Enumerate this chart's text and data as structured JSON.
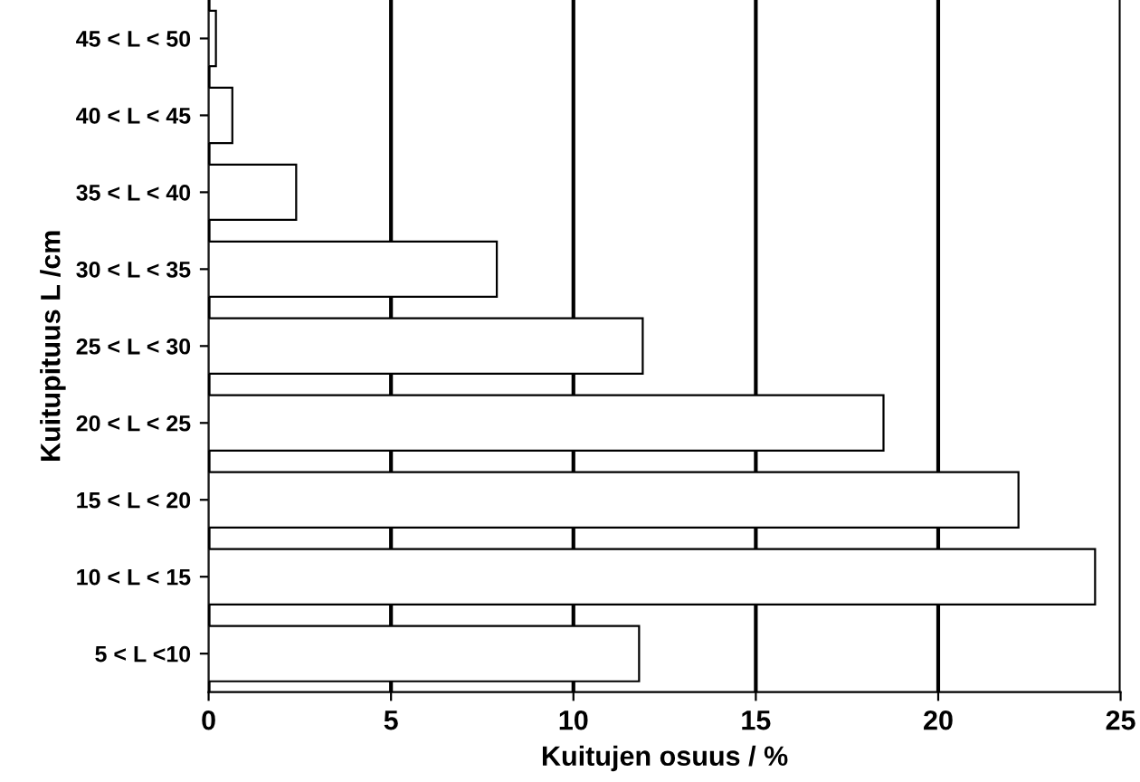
{
  "chart_data": {
    "type": "bar",
    "orientation": "horizontal",
    "xlabel": "Kuitujen osuus / %",
    "ylabel": "Kuitupituus L /cm",
    "categories": [
      "45 < L < 50",
      "40 < L < 45",
      "35 < L < 40",
      "30 < L < 35",
      "25 < L < 30",
      "20 < L < 25",
      "15 < L < 20",
      "10 < L < 15",
      "5 < L <10"
    ],
    "values": [
      0.2,
      0.65,
      2.4,
      7.9,
      11.9,
      18.5,
      22.2,
      24.3,
      11.8
    ],
    "color": "#ffffff",
    "xlim": [
      0,
      25
    ],
    "xticks": [
      0,
      5,
      10,
      15,
      20,
      25
    ],
    "grid": "x",
    "legend": false
  }
}
